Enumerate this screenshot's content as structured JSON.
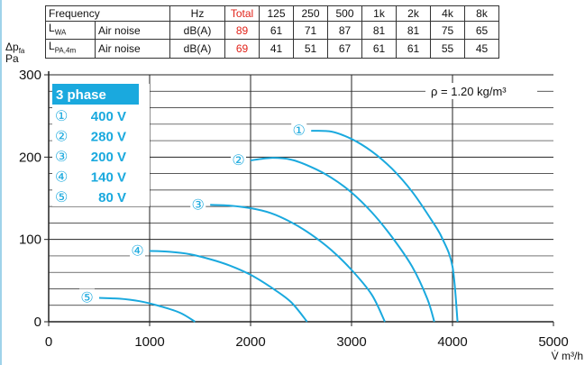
{
  "noise_table": {
    "header": {
      "label": "Frequency",
      "unit": "Hz",
      "total": "Total",
      "bands": [
        "125",
        "250",
        "500",
        "1k",
        "2k",
        "4k",
        "8k"
      ]
    },
    "rows": [
      {
        "symbol": "L",
        "sub": "WA",
        "source": "Air noise",
        "unit": "dB(A)",
        "total": "89",
        "values": [
          "61",
          "71",
          "87",
          "81",
          "81",
          "75",
          "65"
        ]
      },
      {
        "symbol": "L",
        "sub": "PA,4m",
        "source": "Air noise",
        "unit": "dB(A)",
        "total": "69",
        "values": [
          "41",
          "51",
          "67",
          "61",
          "61",
          "55",
          "45"
        ]
      }
    ]
  },
  "colors": {
    "curve": "#1aa9de",
    "legend_header": "#1aa9de",
    "accent_red": "#e2231a",
    "grid": "#222222"
  },
  "chart_data": {
    "type": "line",
    "ylabel_main": "Δp",
    "ylabel_sub": "fa",
    "ylabel_unit": "Pa",
    "xlabel": "V̇ m³/h",
    "xlim": [
      0,
      5000
    ],
    "ylim": [
      0,
      300
    ],
    "x_ticks": [
      "0",
      "1000",
      "2000",
      "3000",
      "4000",
      "5000"
    ],
    "y_ticks": [
      "0",
      "100",
      "200",
      "300"
    ],
    "grid": true,
    "annotation": "ρ = 1.20 kg/m³",
    "legend_title": "3 phase",
    "series": [
      {
        "marker": "①",
        "name": "400 V",
        "points": [
          [
            2600,
            232
          ],
          [
            2800,
            231
          ],
          [
            3000,
            222
          ],
          [
            3200,
            207
          ],
          [
            3400,
            186
          ],
          [
            3600,
            158
          ],
          [
            3800,
            122
          ],
          [
            3900,
            101
          ],
          [
            4000,
            67
          ],
          [
            4050,
            0
          ]
        ]
      },
      {
        "marker": "②",
        "name": "280 V",
        "points": [
          [
            2000,
            196
          ],
          [
            2200,
            199
          ],
          [
            2400,
            197
          ],
          [
            2600,
            188
          ],
          [
            2800,
            175
          ],
          [
            3000,
            157
          ],
          [
            3200,
            133
          ],
          [
            3400,
            103
          ],
          [
            3600,
            67
          ],
          [
            3750,
            28
          ],
          [
            3820,
            0
          ]
        ]
      },
      {
        "marker": "③",
        "name": "200 V",
        "points": [
          [
            1600,
            142
          ],
          [
            1800,
            141
          ],
          [
            2000,
            138
          ],
          [
            2200,
            132
          ],
          [
            2400,
            121
          ],
          [
            2600,
            106
          ],
          [
            2800,
            87
          ],
          [
            3000,
            63
          ],
          [
            3200,
            33
          ],
          [
            3330,
            0
          ]
        ]
      },
      {
        "marker": "④",
        "name": "140 V",
        "points": [
          [
            1000,
            86
          ],
          [
            1200,
            85
          ],
          [
            1400,
            82
          ],
          [
            1600,
            76
          ],
          [
            1800,
            68
          ],
          [
            2000,
            57
          ],
          [
            2200,
            42
          ],
          [
            2400,
            24
          ],
          [
            2560,
            0
          ]
        ]
      },
      {
        "marker": "⑤",
        "name": "80 V",
        "points": [
          [
            500,
            29
          ],
          [
            700,
            28
          ],
          [
            900,
            25
          ],
          [
            1100,
            19
          ],
          [
            1300,
            11
          ],
          [
            1450,
            0
          ]
        ]
      }
    ]
  }
}
